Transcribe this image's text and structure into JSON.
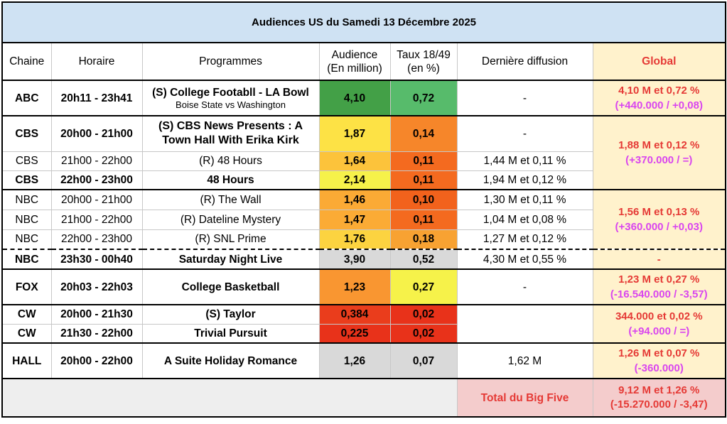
{
  "title": "Audiences US du Samedi 13 Décembre 2025",
  "headers": {
    "chaine": "Chaine",
    "horaire": "Horaire",
    "programmes": "Programmes",
    "audience_l1": "Audience",
    "audience_l2": "(En million)",
    "taux_l1": "Taux 18/49",
    "taux_l2": "(en %)",
    "derniere": "Dernière diffusion",
    "global": "Global"
  },
  "rows": [
    {
      "chaine": "ABC",
      "horaire": "20h11 - 23h41",
      "programme": "(S) College Footabll - LA Bowl",
      "sub": "Boise State vs Washington",
      "audience": "4,10",
      "taux": "0,72",
      "derniere": "-",
      "audience_color": "#43a047",
      "taux_color": "#57bb6b"
    },
    {
      "chaine": "CBS",
      "horaire": "20h00 - 21h00",
      "programme": "(S) CBS News Presents : A Town Hall With Erika Kirk",
      "audience": "1,87",
      "taux": "0,14",
      "derniere": "-",
      "audience_color": "#fde245",
      "taux_color": "#f6862a"
    },
    {
      "chaine": "CBS",
      "horaire": "21h00 - 22h00",
      "programme": "(R) 48 Hours",
      "audience": "1,64",
      "taux": "0,11",
      "derniere": "1,44 M et 0,11 %",
      "audience_color": "#fcc33b",
      "taux_color": "#f46a1f"
    },
    {
      "chaine": "CBS",
      "horaire": "22h00 - 23h00",
      "programme": "48 Hours",
      "audience": "2,14",
      "taux": "0,11",
      "derniere": "1,94 M et 0,12 %",
      "audience_color": "#f6f24a",
      "taux_color": "#f46a1f"
    },
    {
      "chaine": "NBC",
      "horaire": "20h00 - 21h00",
      "programme": "(R) The Wall",
      "audience": "1,46",
      "taux": "0,10",
      "derniere": "1,30 M et 0,11 %",
      "audience_color": "#fbaa35",
      "taux_color": "#f2621c"
    },
    {
      "chaine": "NBC",
      "horaire": "21h00 - 22h00",
      "programme": "(R) Dateline Mystery",
      "audience": "1,47",
      "taux": "0,11",
      "derniere": "1,04 M et 0,08 %",
      "audience_color": "#fbab35",
      "taux_color": "#f46a1f"
    },
    {
      "chaine": "NBC",
      "horaire": "22h00 - 23h00",
      "programme": "(R) SNL Prime",
      "audience": "1,76",
      "taux": "0,18",
      "derniere": "1,27 M et 0,12 %",
      "audience_color": "#fcd340",
      "taux_color": "#f8a232"
    },
    {
      "chaine": "NBC",
      "horaire": "23h30 - 00h40",
      "programme": "Saturday Night Live",
      "audience": "3,90",
      "taux": "0,52",
      "derniere": "4,30 M et 0,55 %",
      "audience_color": "#d9d9d9",
      "taux_color": "#d9d9d9"
    },
    {
      "chaine": "FOX",
      "horaire": "20h03 - 22h03",
      "programme": "College Basketball",
      "audience": "1,23",
      "taux": "0,27",
      "derniere": "-",
      "audience_color": "#f99631",
      "taux_color": "#f6f24a"
    },
    {
      "chaine": "CW",
      "horaire": "20h00 - 21h30",
      "programme": "(S) Taylor",
      "audience": "0,384",
      "taux": "0,02",
      "derniere": "",
      "audience_color": "#ea3d1c",
      "taux_color": "#e8321a"
    },
    {
      "chaine": "CW",
      "horaire": "21h30 - 22h00",
      "programme": "Trivial Pursuit",
      "audience": "0,225",
      "taux": "0,02",
      "derniere": "",
      "audience_color": "#e8321a",
      "taux_color": "#e8321a"
    },
    {
      "chaine": "HALL",
      "horaire": "20h00 - 22h00",
      "programme": "A Suite Holiday Romance",
      "audience": "1,26",
      "taux": "0,07",
      "derniere": "1,62 M",
      "audience_color": "#d9d9d9",
      "taux_color": "#d9d9d9"
    }
  ],
  "global": {
    "abc": {
      "main": "4,10 M et 0,72 %",
      "delta": "(+440.000 / +0,08)"
    },
    "cbs": {
      "main": "1,88 M et 0,12 %",
      "delta": "(+370.000 / =)"
    },
    "nbc": {
      "main": "1,56 M et 0,13 %",
      "delta": "(+360.000 / +0,03)"
    },
    "nbc_snl": "-",
    "fox": {
      "main": "1,23 M et 0,27 %",
      "delta": "(-16.540.000 / -3,57)"
    },
    "cw": {
      "main": "344.000 et 0,02 %",
      "delta": "(+94.000 / =)"
    },
    "hall": {
      "main": "1,26 M et 0,07 %",
      "delta": "(-360.000)"
    }
  },
  "footer": {
    "label": "Total du Big Five",
    "main": "9,12 M et 1,26 %",
    "delta": "(-15.270.000 / -3,47)"
  }
}
